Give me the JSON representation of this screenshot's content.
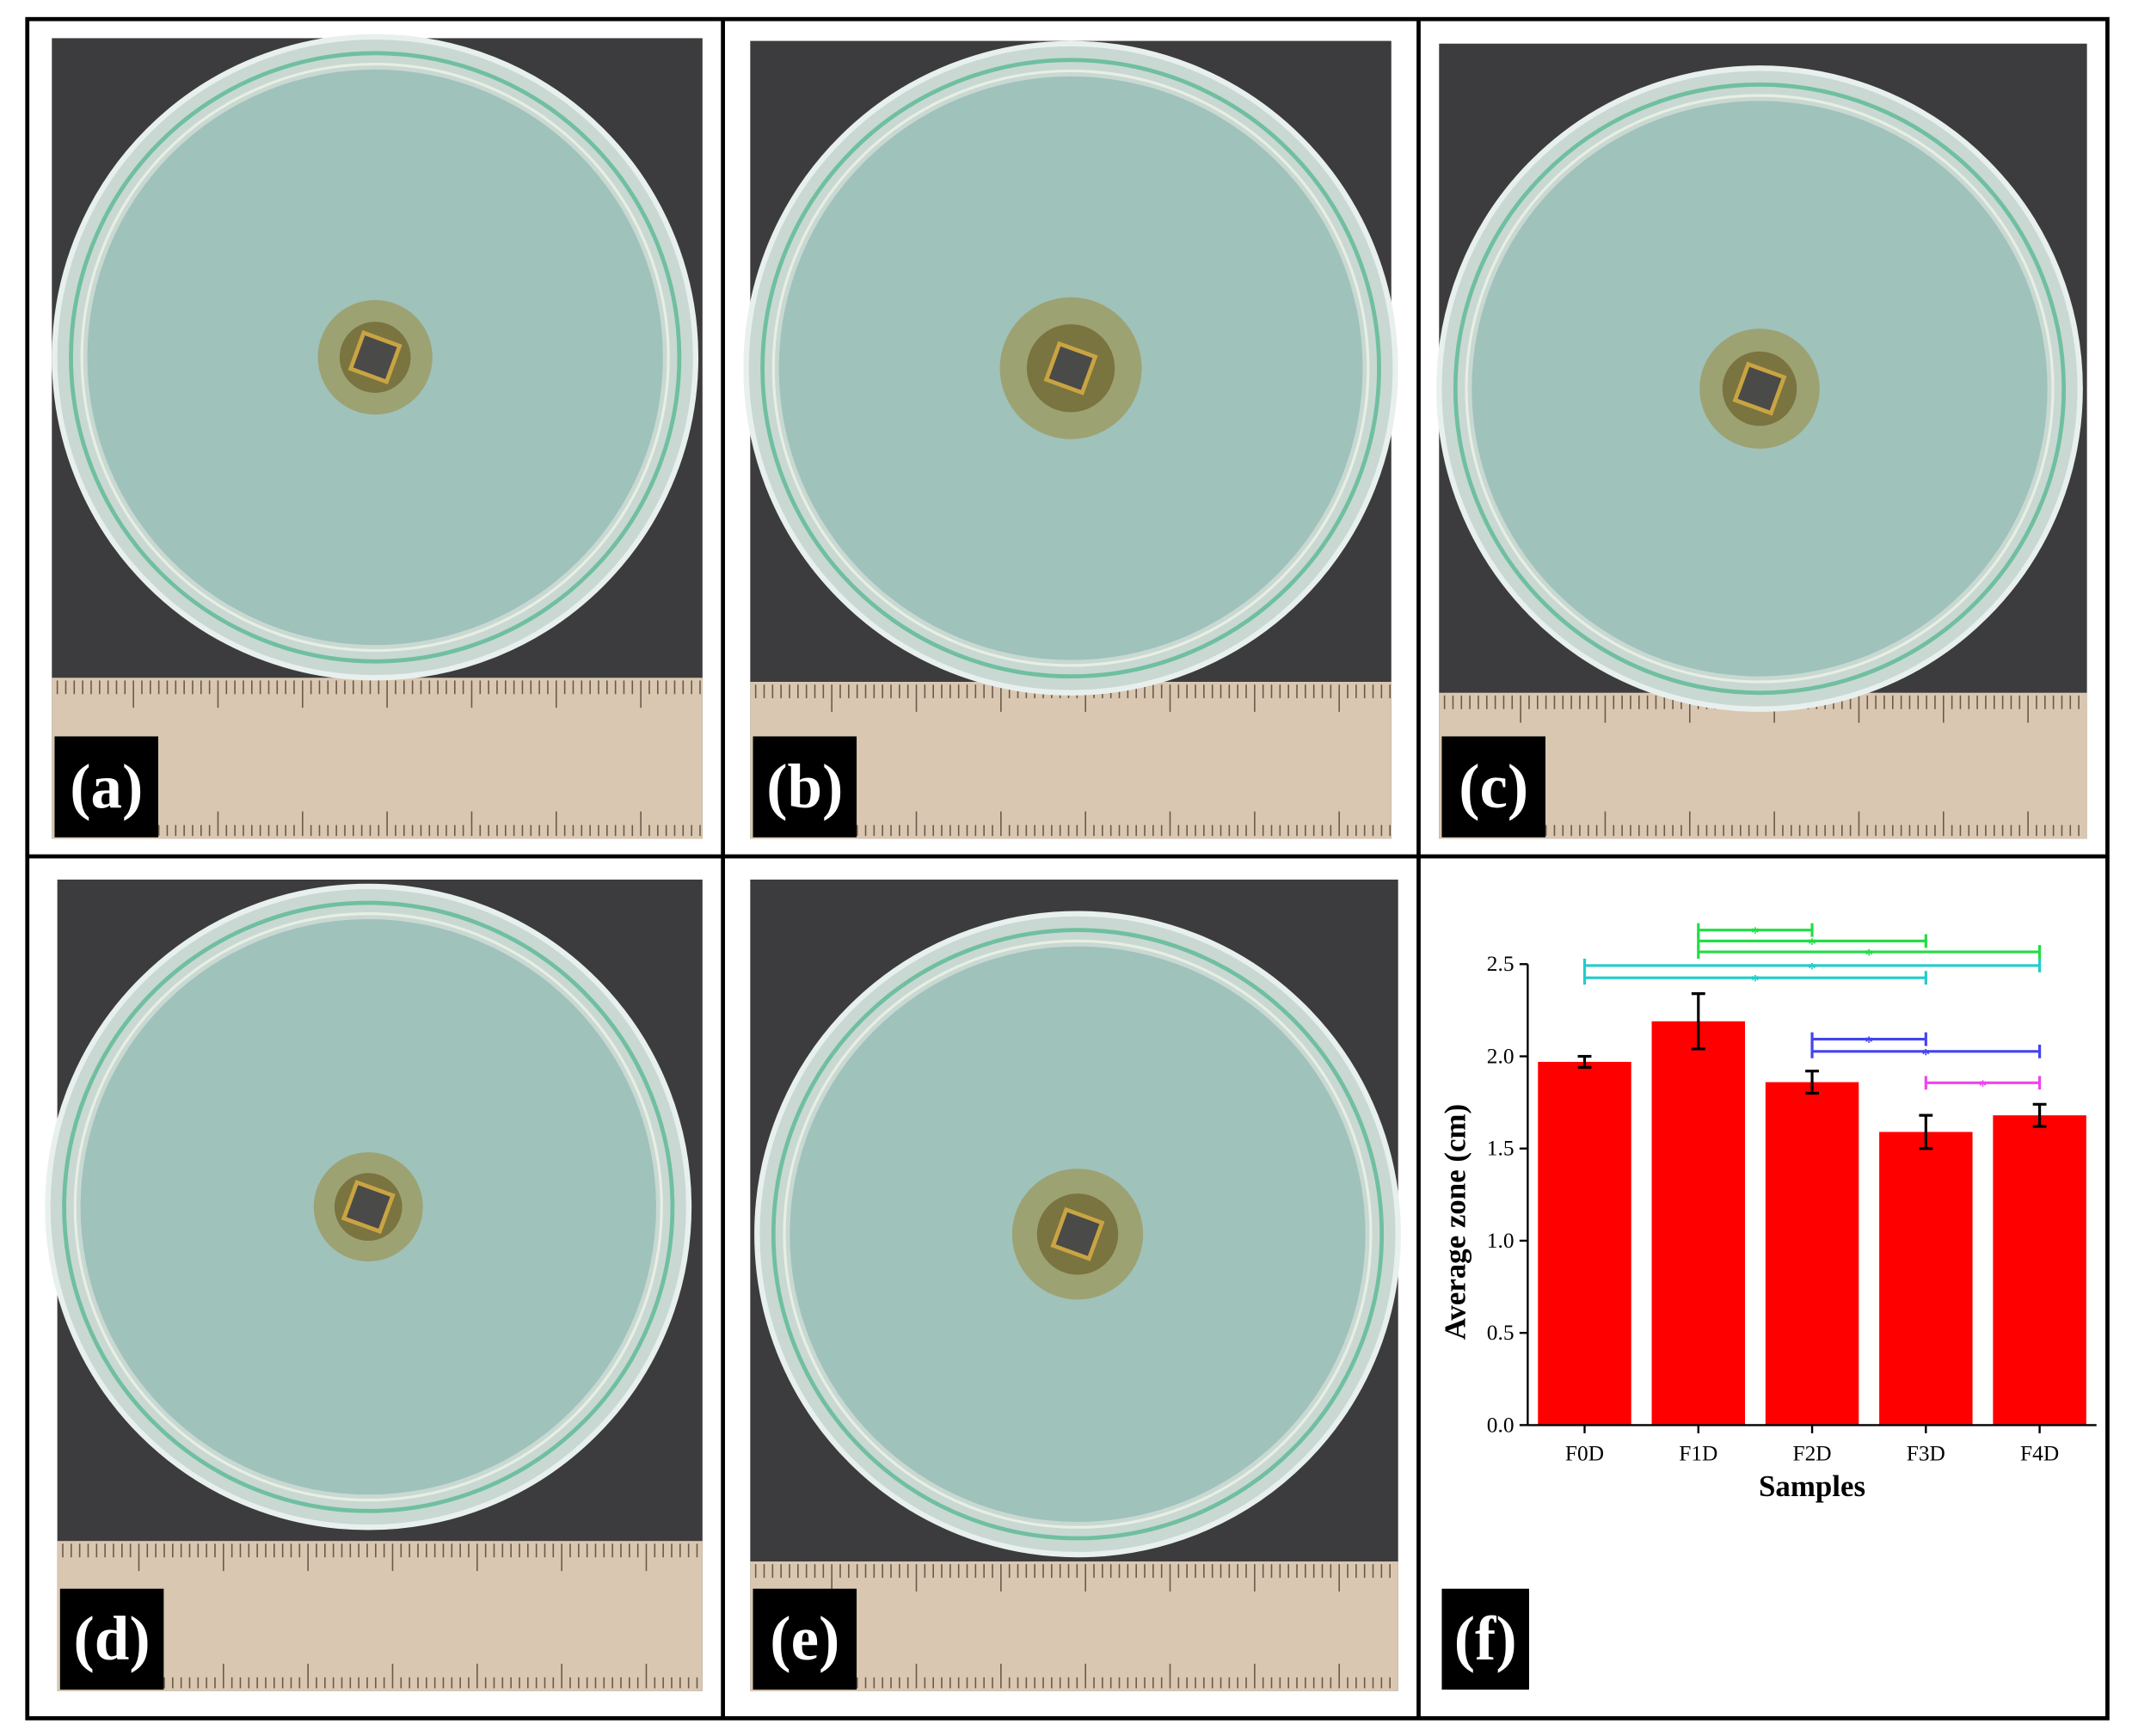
{
  "panels": [
    "(a)",
    "(b)",
    "(c)",
    "(d)",
    "(e)",
    "(f)"
  ],
  "chart_data": {
    "type": "bar",
    "xlabel": "Samples",
    "ylabel": "Average zone (cm)",
    "categories": [
      "F0D",
      "F1D",
      "F2D",
      "F3D",
      "F4D"
    ],
    "values": [
      1.97,
      2.19,
      1.86,
      1.59,
      1.68
    ],
    "errors": [
      0.03,
      0.15,
      0.06,
      0.09,
      0.06
    ],
    "color": "#ff0000",
    "ylim": [
      0,
      2.5
    ],
    "yticks": [
      {
        "value": 0,
        "label": "0.0"
      },
      0.5,
      {
        "value": 1,
        "label": "1.0"
      },
      1.5,
      {
        "value": 2,
        "label": "2.0"
      },
      2.5
    ],
    "significance": [
      {
        "from": "F1D",
        "to": "F2D",
        "label": "*",
        "color": "#22dd44"
      },
      {
        "from": "F1D",
        "to": "F3D",
        "label": "*",
        "color": "#22dd44"
      },
      {
        "from": "F1D",
        "to": "F4D",
        "label": "*",
        "color": "#22dd44"
      },
      {
        "from": "F0D",
        "to": "F4D",
        "label": "*",
        "color": "#22cccc"
      },
      {
        "from": "F0D",
        "to": "F3D",
        "label": "*",
        "color": "#22cccc"
      },
      {
        "from": "F2D",
        "to": "F3D",
        "label": "*",
        "color": "#4444ee"
      },
      {
        "from": "F2D",
        "to": "F4D",
        "label": "*",
        "color": "#4444ee"
      },
      {
        "from": "F3D",
        "to": "F4D",
        "label": "*",
        "color": "#ee44ee"
      }
    ]
  }
}
